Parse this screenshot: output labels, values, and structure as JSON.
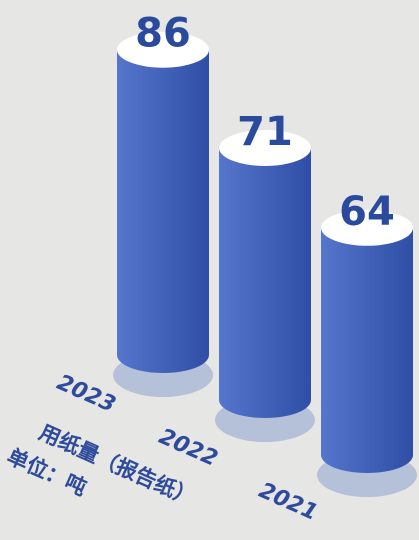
{
  "chart_data": {
    "type": "bar",
    "title": "用纸量（报告纸）",
    "subtitle": "单位：吨",
    "categories": [
      "2023",
      "2022",
      "2021"
    ],
    "values": [
      86,
      71,
      64
    ],
    "color": "#3a5cb8"
  }
}
